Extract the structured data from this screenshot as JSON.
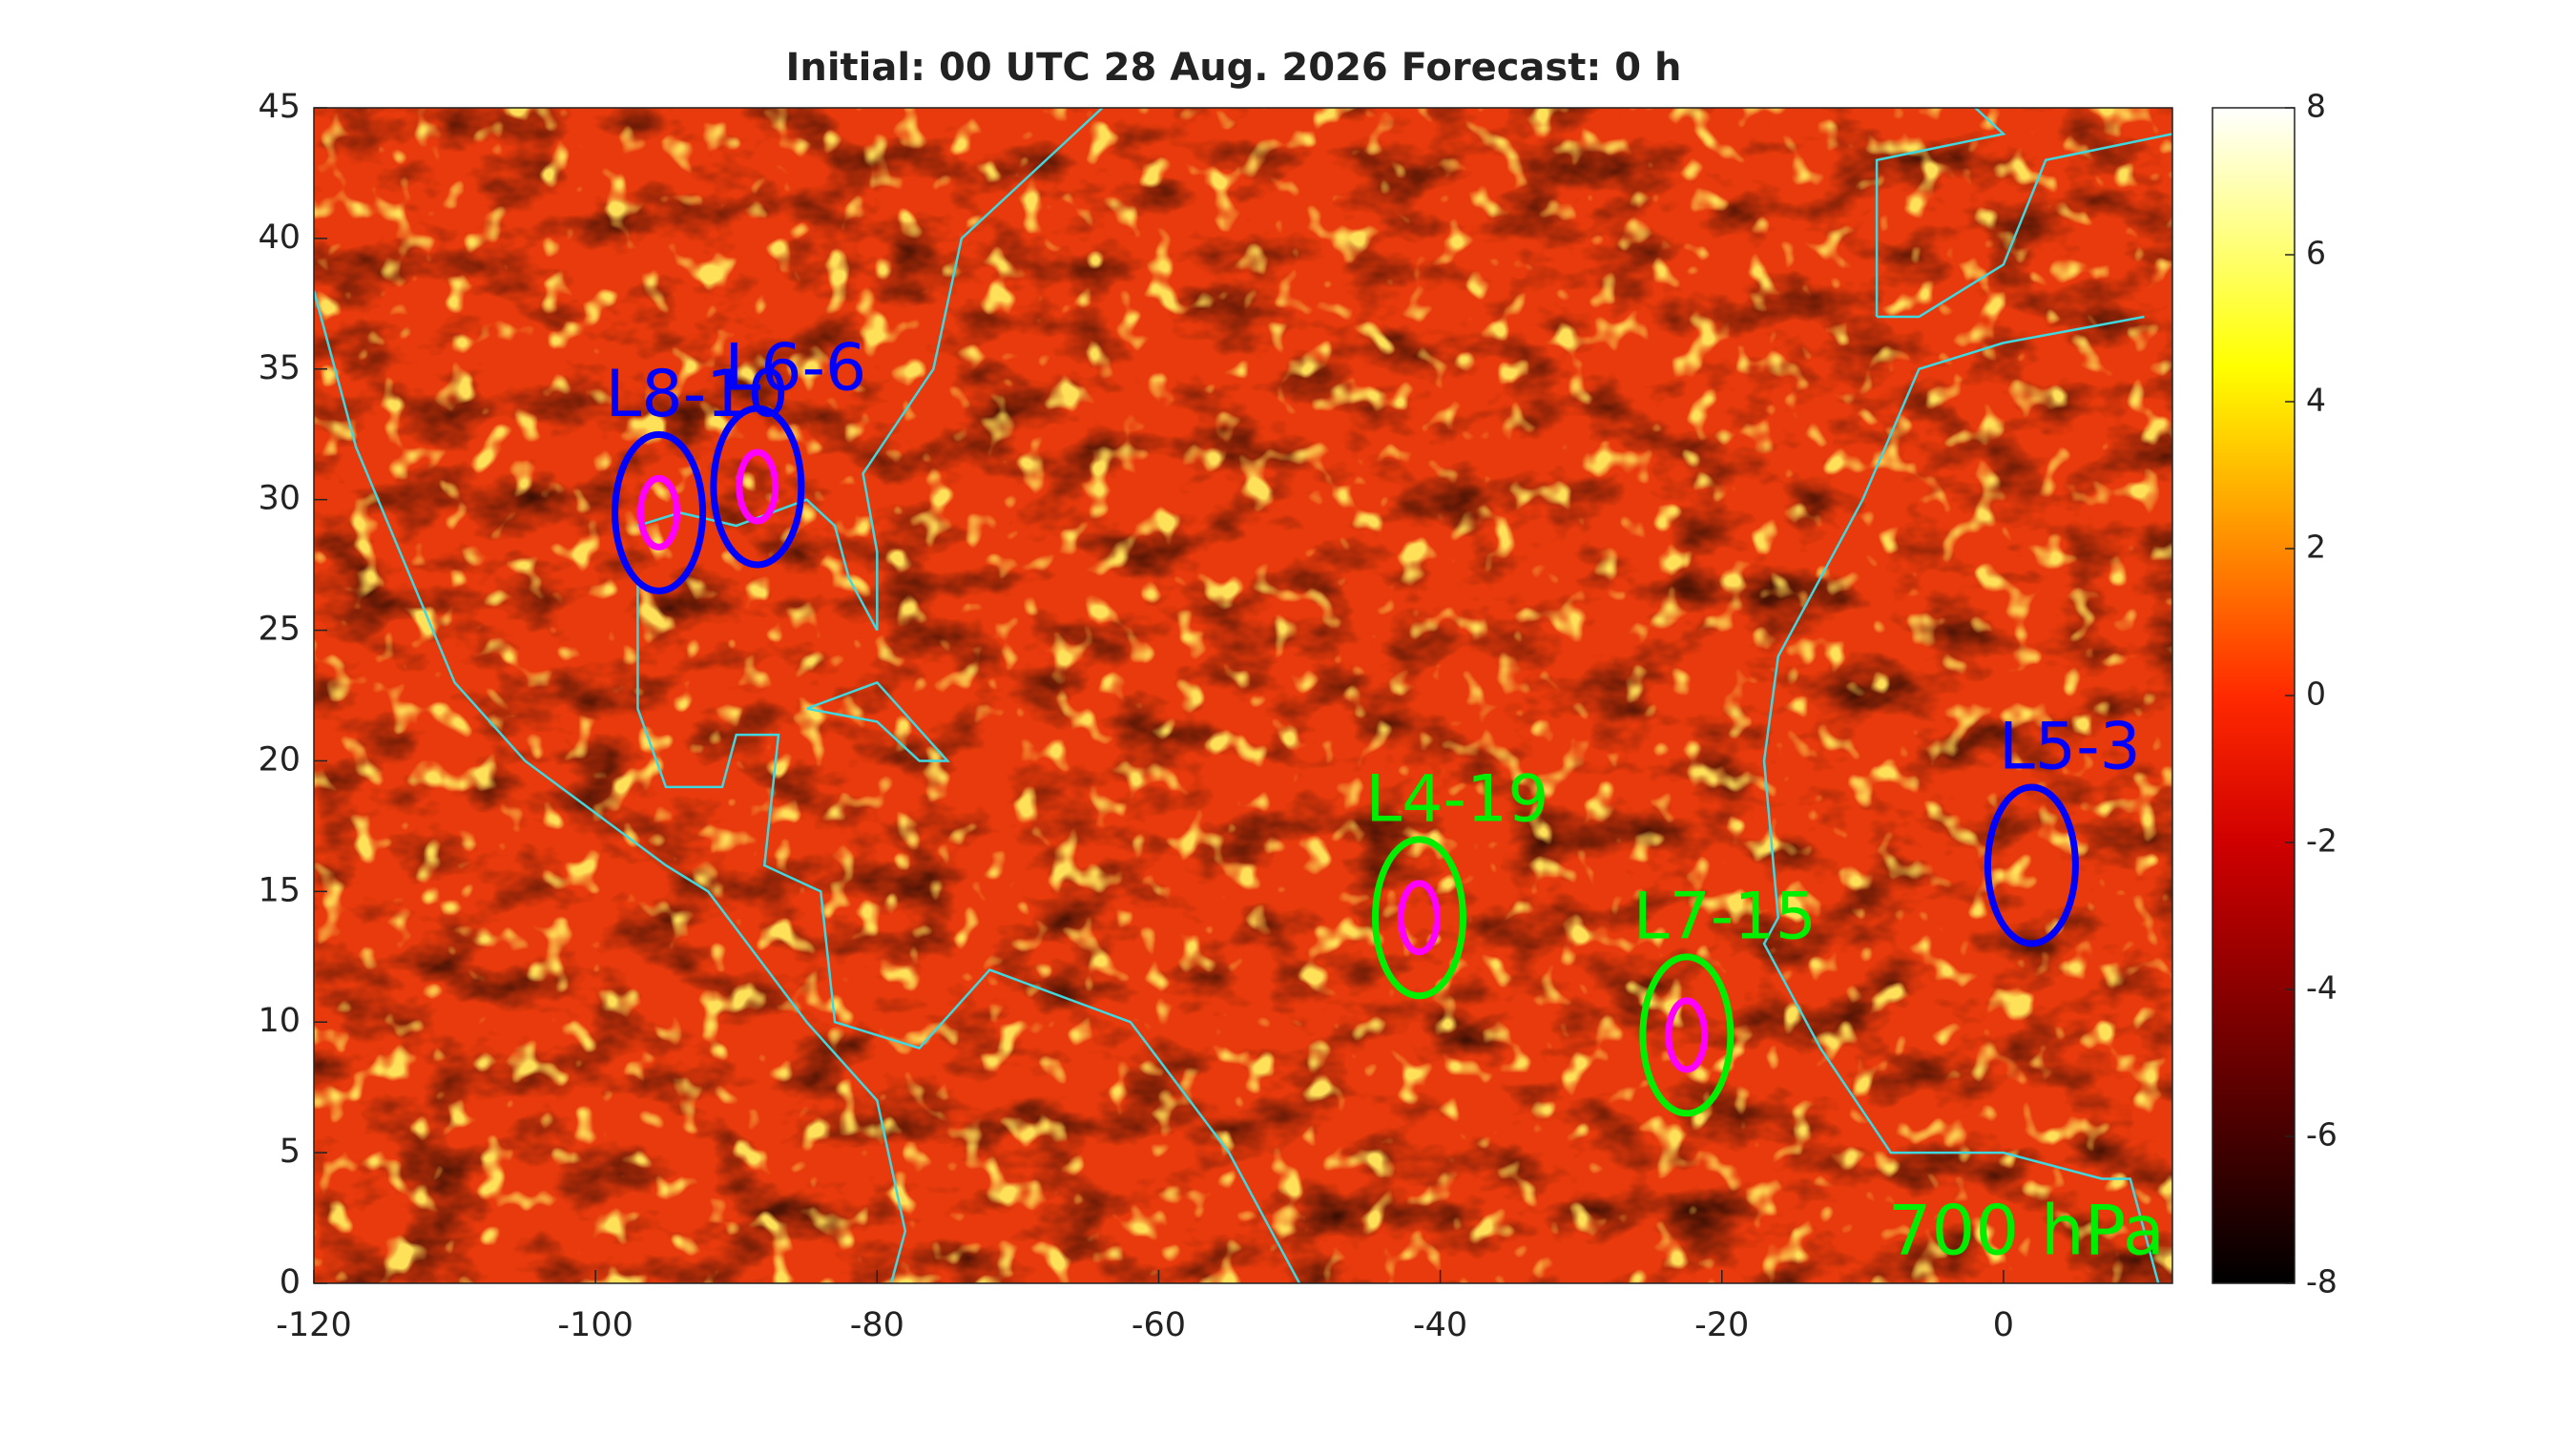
{
  "chart_data": {
    "type": "heatmap",
    "title": "Initial: 00 UTC 28 Aug. 2026 Forecast: 0 h",
    "xlim": [
      -120,
      12
    ],
    "xticks": [
      -120,
      -100,
      -80,
      -60,
      -40,
      -20,
      0
    ],
    "ylim": [
      0,
      45
    ],
    "yticks": [
      0,
      5,
      10,
      15,
      20,
      25,
      30,
      35,
      40,
      45
    ],
    "clim": [
      -8,
      8
    ],
    "cticks": [
      -8,
      -6,
      -4,
      -2,
      0,
      2,
      4,
      6,
      8
    ],
    "colormap": "hot",
    "coast_color": "#40d8e0",
    "level_label": "700 hPa",
    "level_color": "#00ee00",
    "systems": [
      {
        "name": "L8-10",
        "lon": -95.5,
        "lat": 29.5,
        "color": "#0000ff",
        "inner_color": "#ff00ff"
      },
      {
        "name": "L6-6",
        "lon": -88.5,
        "lat": 30.5,
        "color": "#0000ff",
        "inner_color": "#ff00ff"
      },
      {
        "name": "L4-19",
        "lon": -41.5,
        "lat": 14,
        "color": "#00ee00",
        "inner_color": "#ff00ff"
      },
      {
        "name": "L7-15",
        "lon": -22.5,
        "lat": 9.5,
        "color": "#00ee00",
        "inner_color": "#ff00ff"
      },
      {
        "name": "L5-3",
        "lon": 2,
        "lat": 16,
        "color": "#0000ff"
      }
    ]
  }
}
